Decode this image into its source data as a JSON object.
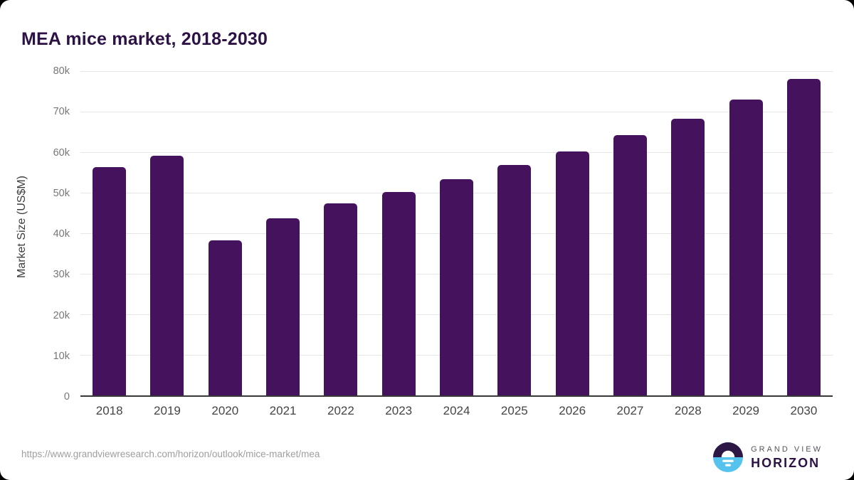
{
  "title": "MEA mice market, 2018-2030",
  "footer": {
    "source_url": "https://www.grandviewresearch.com/horizon/outlook/mice-market/mea",
    "logo_text_top": "GRAND VIEW",
    "logo_text_bottom": "HORIZON"
  },
  "colors": {
    "bar": "#45125e",
    "title": "#2d1245",
    "axis_line": "#383838",
    "gridline": "#e6e6e6",
    "y_tick_label": "#777777",
    "x_tick_label": "#454545",
    "source_url": "#9e9e9e",
    "logo_blue": "#56c3ef",
    "logo_purple": "#2d1745"
  },
  "chart_data": {
    "type": "bar",
    "title": "MEA mice market, 2018-2030",
    "categories": [
      "2018",
      "2019",
      "2020",
      "2021",
      "2022",
      "2023",
      "2024",
      "2025",
      "2026",
      "2027",
      "2028",
      "2029",
      "2030"
    ],
    "values": [
      56300,
      59200,
      38300,
      43600,
      47400,
      50200,
      53400,
      56800,
      60200,
      64200,
      68300,
      72900,
      78000
    ],
    "xlabel": "",
    "ylabel": "Market Size (US$M)",
    "ylim": [
      0,
      80000
    ],
    "yticks": [
      0,
      10000,
      20000,
      30000,
      40000,
      50000,
      60000,
      70000,
      80000
    ],
    "ytick_labels": [
      "0",
      "10k",
      "20k",
      "30k",
      "40k",
      "50k",
      "60k",
      "70k",
      "80k"
    ],
    "grid": true,
    "legend": false,
    "bar_color": "#45125e"
  }
}
